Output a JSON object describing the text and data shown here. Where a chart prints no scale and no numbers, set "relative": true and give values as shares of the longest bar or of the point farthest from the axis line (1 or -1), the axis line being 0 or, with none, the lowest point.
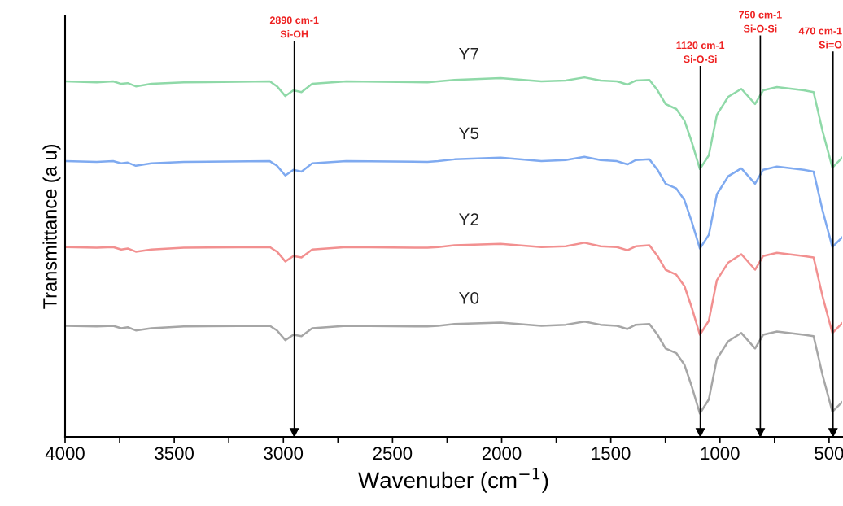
{
  "chart_data": {
    "type": "line",
    "relative": true,
    "xlabel": "Wavenuber (cm$^{−1}$)",
    "ylabel": "Transmittance (a u)",
    "xlim": [
      4000,
      440
    ],
    "xticks": [
      4000,
      {
        "value": 3750,
        "label": null
      },
      3500,
      {
        "value": 3250,
        "label": null
      },
      3000,
      {
        "value": 2750,
        "label": null
      },
      2500,
      {
        "value": 2250,
        "label": null
      },
      2000,
      {
        "value": 1750,
        "label": null
      },
      1500,
      {
        "value": 1250,
        "label": null
      },
      1000,
      {
        "value": 750,
        "label": null
      },
      500
    ],
    "tick_labels": "x",
    "grid": false,
    "legend": false,
    "marker": "none",
    "line_style": "solid",
    "x": [
      4000,
      3855,
      3780,
      3743,
      3713,
      3676,
      3605,
      3456,
      3062,
      3029,
      2991,
      2954,
      2917,
      2868,
      2712,
      2340,
      2291,
      2216,
      2005,
      1818,
      1707,
      1621,
      1547,
      1472,
      1424,
      1386,
      1323,
      1286,
      1249,
      1200,
      1163,
      1130,
      1092,
      1051,
      1014,
      962,
      902,
      839,
      802,
      739,
      616,
      571,
      530,
      485,
      440
    ],
    "series": [
      {
        "name": "Y7",
        "color": "#8fd9a8",
        "values": [
          0.989,
          0.986,
          0.989,
          0.982,
          0.984,
          0.975,
          0.982,
          0.986,
          0.989,
          0.975,
          0.948,
          0.964,
          0.959,
          0.982,
          0.989,
          0.986,
          0.989,
          0.993,
          0.998,
          0.989,
          0.991,
          1.0,
          0.991,
          0.989,
          0.98,
          0.991,
          0.993,
          0.964,
          0.926,
          0.912,
          0.88,
          0.822,
          0.745,
          0.783,
          0.896,
          0.946,
          0.968,
          0.926,
          0.964,
          0.973,
          0.964,
          0.959,
          0.851,
          0.749,
          0.777
        ]
      },
      {
        "name": "Y5",
        "color": "#7faaf0",
        "values": [
          0.767,
          0.765,
          0.767,
          0.761,
          0.763,
          0.754,
          0.761,
          0.765,
          0.767,
          0.754,
          0.727,
          0.743,
          0.738,
          0.761,
          0.767,
          0.765,
          0.767,
          0.772,
          0.777,
          0.767,
          0.77,
          0.779,
          0.77,
          0.767,
          0.758,
          0.77,
          0.772,
          0.743,
          0.704,
          0.691,
          0.659,
          0.6,
          0.524,
          0.562,
          0.675,
          0.725,
          0.747,
          0.704,
          0.743,
          0.752,
          0.743,
          0.738,
          0.63,
          0.528,
          0.555
        ]
      },
      {
        "name": "Y2",
        "color": "#f29090",
        "values": [
          0.528,
          0.526,
          0.528,
          0.521,
          0.524,
          0.515,
          0.521,
          0.526,
          0.528,
          0.515,
          0.488,
          0.503,
          0.499,
          0.521,
          0.528,
          0.526,
          0.528,
          0.533,
          0.537,
          0.528,
          0.53,
          0.54,
          0.53,
          0.528,
          0.519,
          0.53,
          0.533,
          0.503,
          0.465,
          0.451,
          0.42,
          0.361,
          0.284,
          0.323,
          0.436,
          0.485,
          0.508,
          0.465,
          0.503,
          0.512,
          0.503,
          0.499,
          0.391,
          0.289,
          0.316
        ]
      },
      {
        "name": "Y0",
        "color": "#a6a6a6",
        "values": [
          0.309,
          0.307,
          0.309,
          0.302,
          0.305,
          0.296,
          0.302,
          0.307,
          0.309,
          0.296,
          0.269,
          0.284,
          0.28,
          0.302,
          0.309,
          0.307,
          0.309,
          0.314,
          0.318,
          0.309,
          0.312,
          0.321,
          0.312,
          0.309,
          0.3,
          0.312,
          0.314,
          0.284,
          0.246,
          0.233,
          0.201,
          0.142,
          0.065,
          0.104,
          0.217,
          0.266,
          0.289,
          0.246,
          0.284,
          0.293,
          0.284,
          0.28,
          0.172,
          0.07,
          0.097
        ]
      }
    ],
    "ref_lines": [
      {
        "axis": "x",
        "value": 2950,
        "label": "2890 cm-1\nSi-OH",
        "color": "#000000"
      },
      {
        "axis": "x",
        "value": 1090,
        "label": "1120 cm-1\nSi-O-Si",
        "color": "#000000"
      },
      {
        "axis": "x",
        "value": 815,
        "label": "750 cm-1\nSi-O-Si",
        "color": "#000000"
      },
      {
        "axis": "x",
        "value": 482,
        "label": "470 cm-1\nSi=O",
        "color": "#000000"
      }
    ]
  }
}
